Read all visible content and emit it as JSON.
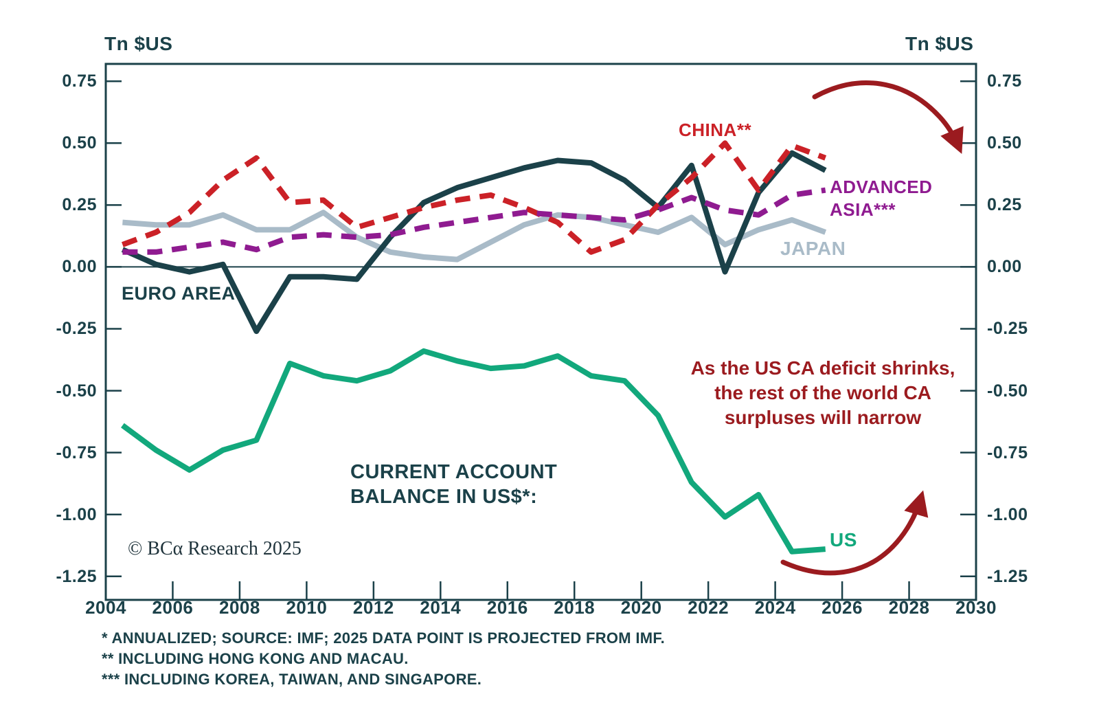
{
  "header": {
    "unit_left": "Tn $US",
    "unit_right": "Tn $US"
  },
  "chart_data": {
    "type": "line",
    "title": "CURRENT ACCOUNT BALANCE IN US$*:",
    "unit": "Tn $US",
    "grid": "off",
    "xlim": [
      2004,
      2030
    ],
    "ylim": [
      -1.345,
      0.82
    ],
    "x_ticks": [
      2004,
      2006,
      2008,
      2010,
      2012,
      2014,
      2016,
      2018,
      2020,
      2022,
      2024,
      2026,
      2028,
      2030
    ],
    "y_ticks": [
      0.75,
      0.5,
      0.25,
      0,
      -0.25,
      -0.5,
      -0.75,
      -1,
      -1.25
    ],
    "y_tick_labels": [
      "0.75",
      "0.50",
      "0.25",
      "0.00",
      "-0.25",
      "-0.50",
      "-0.75",
      "-1.00",
      "-1.25"
    ],
    "years": [
      2004,
      2005,
      2006,
      2007,
      2008,
      2009,
      2010,
      2011,
      2012,
      2013,
      2014,
      2015,
      2016,
      2017,
      2018,
      2019,
      2020,
      2021,
      2022,
      2023,
      2024,
      2025
    ],
    "series": [
      {
        "id": "japan",
        "name": "JAPAN",
        "color": "#a9bbc8",
        "dash": false,
        "values": [
          0.18,
          0.17,
          0.17,
          0.21,
          0.15,
          0.15,
          0.22,
          0.12,
          0.06,
          0.04,
          0.03,
          0.1,
          0.17,
          0.21,
          0.2,
          0.17,
          0.14,
          0.2,
          0.09,
          0.15,
          0.19,
          0.14
        ]
      },
      {
        "id": "euro-area",
        "name": "EURO AREA",
        "color": "#1b4149",
        "dash": false,
        "values": [
          0.07,
          0.01,
          -0.02,
          0.01,
          -0.26,
          -0.04,
          -0.04,
          -0.05,
          0.12,
          0.26,
          0.32,
          0.36,
          0.4,
          0.43,
          0.42,
          0.35,
          0.24,
          0.41,
          -0.02,
          0.3,
          0.46,
          0.39
        ]
      },
      {
        "id": "china",
        "name": "CHINA**",
        "color": "#cb2127",
        "dash": true,
        "values": [
          0.09,
          0.14,
          0.22,
          0.35,
          0.44,
          0.26,
          0.27,
          0.16,
          0.2,
          0.24,
          0.27,
          0.29,
          0.24,
          0.18,
          0.06,
          0.11,
          0.25,
          0.36,
          0.5,
          0.31,
          0.49,
          0.44
        ]
      },
      {
        "id": "advanced-asia",
        "name": "ADVANCED ASIA***",
        "color": "#8f1b90",
        "dash": true,
        "values": [
          0.06,
          0.06,
          0.08,
          0.1,
          0.07,
          0.12,
          0.13,
          0.12,
          0.13,
          0.16,
          0.18,
          0.2,
          0.22,
          0.21,
          0.2,
          0.19,
          0.23,
          0.28,
          0.23,
          0.21,
          0.29,
          0.31
        ]
      },
      {
        "id": "us",
        "name": "US",
        "color": "#12a87c",
        "dash": false,
        "values": [
          -0.64,
          -0.74,
          -0.82,
          -0.74,
          -0.7,
          -0.39,
          -0.44,
          -0.46,
          -0.42,
          -0.34,
          -0.38,
          -0.41,
          -0.4,
          -0.36,
          -0.44,
          -0.46,
          -0.6,
          -0.87,
          -1.01,
          -0.92,
          -1.15,
          -1.14
        ]
      }
    ]
  },
  "series_labels": {
    "euro": "EURO AREA",
    "china": "CHINA**",
    "advanced_line1": "ADVANCED",
    "advanced_line2": "ASIA***",
    "japan": "JAPAN",
    "us": "US"
  },
  "annotation": {
    "line1": "As the US CA deficit shrinks,",
    "line2": "the rest of the world CA",
    "line3": "surpluses will narrow"
  },
  "chart_title": {
    "line1": "CURRENT ACCOUNT",
    "line2": "BALANCE IN US$*:"
  },
  "copyright": "© BCα Research 2025",
  "footnotes": {
    "line1": "* ANNUALIZED; SOURCE: IMF; 2025 DATA POINT IS PROJECTED FROM IMF.",
    "line2": "** INCLUDING HONG KONG AND MACAU.",
    "line3": "*** INCLUDING KOREA, TAIWAN, AND SINGAPORE."
  },
  "colors": {
    "axis": "#1b4149",
    "euro_area": "#1b4149",
    "china": "#cb2127",
    "advanced_asia": "#8f1b90",
    "japan": "#a9bbc8",
    "us": "#12a87c",
    "annotation_red": "#9b1b1f",
    "background": "#ffffff"
  }
}
